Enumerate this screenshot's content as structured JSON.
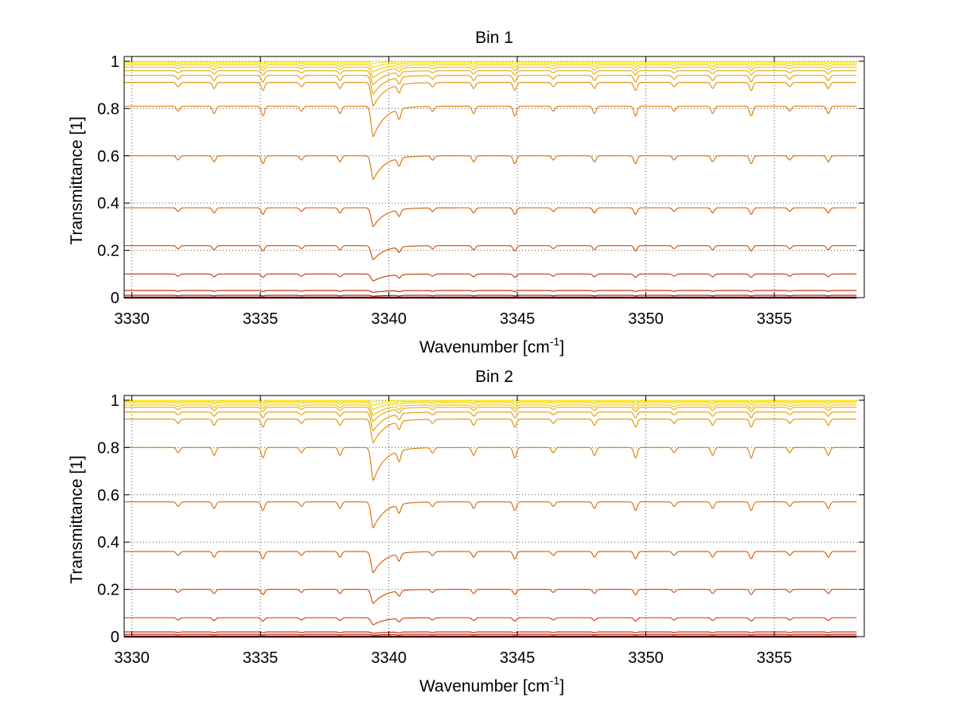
{
  "chart_data": [
    {
      "type": "line",
      "title": "Bin 1",
      "xlabel": "Wavenumber [cm",
      "xlabel_sup": "-1",
      "xlabel_end": "]",
      "ylabel": "Transmittance [1]",
      "xlim": [
        3329.7,
        3358.5
      ],
      "ylim": [
        0,
        1.02
      ],
      "xticks": [
        3330,
        3335,
        3340,
        3345,
        3350,
        3355
      ],
      "yticks": [
        0,
        0.2,
        0.4,
        0.6,
        0.8,
        1
      ],
      "ytick_labels": [
        "0",
        "0.2",
        "0.4",
        "0.6",
        "0.8",
        "1"
      ],
      "grid": true,
      "main_absorption_x": 3339.4,
      "series": [
        {
          "baseline": 0.0,
          "main_depth": 0.0,
          "color": "#8b0000"
        },
        {
          "baseline": 0.01,
          "main_depth": 0.004,
          "color": "#b01000"
        },
        {
          "baseline": 0.03,
          "main_depth": 0.008,
          "color": "#c02000"
        },
        {
          "baseline": 0.1,
          "main_depth": 0.03,
          "color": "#c83800"
        },
        {
          "baseline": 0.22,
          "main_depth": 0.06,
          "color": "#d04a00"
        },
        {
          "baseline": 0.38,
          "main_depth": 0.08,
          "color": "#d45800"
        },
        {
          "baseline": 0.6,
          "main_depth": 0.1,
          "color": "#d86a00"
        },
        {
          "baseline": 0.81,
          "main_depth": 0.13,
          "color": "#dc7c00"
        },
        {
          "baseline": 0.91,
          "main_depth": 0.1,
          "color": "#e08c00"
        },
        {
          "baseline": 0.94,
          "main_depth": 0.08,
          "color": "#e49a00"
        },
        {
          "baseline": 0.96,
          "main_depth": 0.06,
          "color": "#e8aa00"
        },
        {
          "baseline": 0.975,
          "main_depth": 0.045,
          "color": "#ecba00"
        },
        {
          "baseline": 0.985,
          "main_depth": 0.03,
          "color": "#f0cc00"
        },
        {
          "baseline": 0.993,
          "main_depth": 0.018,
          "color": "#f4dc00"
        },
        {
          "baseline": 0.998,
          "main_depth": 0.008,
          "color": "#f0ec10"
        }
      ]
    },
    {
      "type": "line",
      "title": "Bin 2",
      "xlabel": "Wavenumber [cm",
      "xlabel_sup": "-1",
      "xlabel_end": "]",
      "ylabel": "Transmittance [1]",
      "xlim": [
        3329.7,
        3358.5
      ],
      "ylim": [
        0,
        1.02
      ],
      "xticks": [
        3330,
        3335,
        3340,
        3345,
        3350,
        3355
      ],
      "yticks": [
        0,
        0.2,
        0.4,
        0.6,
        0.8,
        1
      ],
      "ytick_labels": [
        "0",
        "0.2",
        "0.4",
        "0.6",
        "0.8",
        "1"
      ],
      "grid": true,
      "main_absorption_x": 3339.4,
      "series": [
        {
          "baseline": 0.0,
          "main_depth": 0.0,
          "color": "#8b0000"
        },
        {
          "baseline": 0.01,
          "main_depth": 0.004,
          "color": "#b01000"
        },
        {
          "baseline": 0.02,
          "main_depth": 0.006,
          "color": "#c02000"
        },
        {
          "baseline": 0.08,
          "main_depth": 0.03,
          "color": "#c83800"
        },
        {
          "baseline": 0.2,
          "main_depth": 0.06,
          "color": "#d04a00"
        },
        {
          "baseline": 0.36,
          "main_depth": 0.09,
          "color": "#d45800"
        },
        {
          "baseline": 0.57,
          "main_depth": 0.11,
          "color": "#d86a00"
        },
        {
          "baseline": 0.8,
          "main_depth": 0.14,
          "color": "#dc7c00"
        },
        {
          "baseline": 0.92,
          "main_depth": 0.1,
          "color": "#e08c00"
        },
        {
          "baseline": 0.95,
          "main_depth": 0.08,
          "color": "#e49a00"
        },
        {
          "baseline": 0.97,
          "main_depth": 0.06,
          "color": "#e8aa00"
        },
        {
          "baseline": 0.98,
          "main_depth": 0.045,
          "color": "#ecba00"
        },
        {
          "baseline": 0.99,
          "main_depth": 0.03,
          "color": "#f0cc00"
        },
        {
          "baseline": 0.996,
          "main_depth": 0.018,
          "color": "#f4dc00"
        },
        {
          "baseline": 1.0,
          "main_depth": 0.008,
          "color": "#f0ec10"
        }
      ]
    }
  ]
}
